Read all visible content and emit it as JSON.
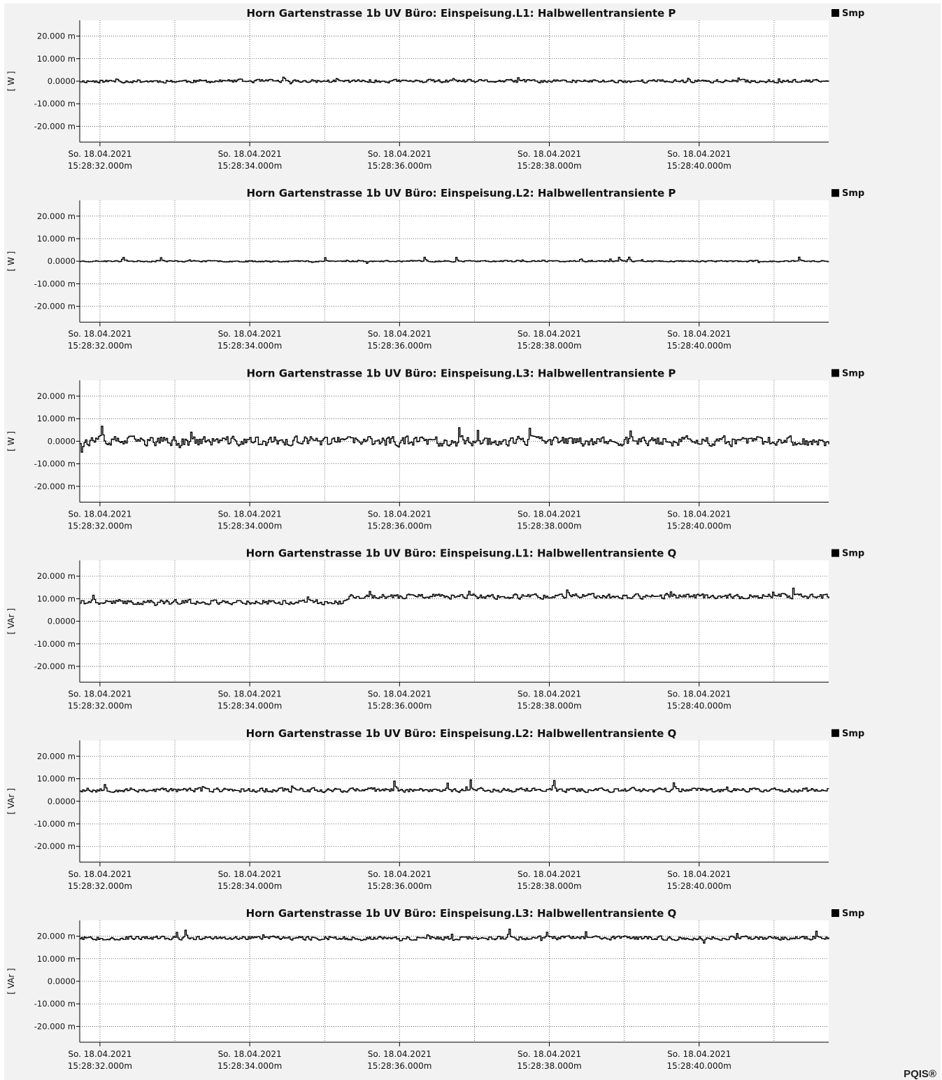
{
  "brand": "PQIS®",
  "legend_label": "Smp",
  "line_color": "#000000",
  "background_color": "#ffffff",
  "chart_data": [
    {
      "type": "line",
      "title": "Horn Gartenstrasse 1b UV Büro:   Einspeisung.L1:   Halbwellentransiente P",
      "ylabel": "[ W ]",
      "yticks": [
        "20.000 m",
        "10.000 m",
        "0.0000",
        "-10.000 m",
        "-20.000 m"
      ],
      "ytick_values": [
        0.02,
        0.01,
        0,
        -0.01,
        -0.02
      ],
      "ylim": [
        -0.027,
        0.027
      ],
      "x_ticks": [
        {
          "date": "So. 18.04.2021",
          "time": "15:28:32.000m",
          "t": 0.27
        },
        {
          "date": "So. 18.04.2021",
          "time": "15:28:34.000m",
          "t": 2.27
        },
        {
          "date": "So. 18.04.2021",
          "time": "15:28:36.000m",
          "t": 4.27
        },
        {
          "date": "So. 18.04.2021",
          "time": "15:28:38.000m",
          "t": 6.27
        },
        {
          "date": "So. 18.04.2021",
          "time": "15:28:40.000m",
          "t": 8.27
        }
      ],
      "xlim": [
        0,
        10
      ],
      "vgrid_t": [
        0.27,
        1.27,
        2.27,
        3.27,
        4.27,
        5.27,
        6.27,
        7.27,
        8.27,
        9.27
      ],
      "series": [
        {
          "mean": 0.0,
          "noise": 0.0012,
          "spikes": 0.0025,
          "seed": 11
        }
      ]
    },
    {
      "type": "line",
      "title": "Horn Gartenstrasse 1b UV Büro:   Einspeisung.L2:   Halbwellentransiente P",
      "ylabel": "[ W ]",
      "yticks": [
        "20.000 m",
        "10.000 m",
        "0.0000",
        "-10.000 m",
        "-20.000 m"
      ],
      "ytick_values": [
        0.02,
        0.01,
        0,
        -0.01,
        -0.02
      ],
      "ylim": [
        -0.027,
        0.027
      ],
      "x_ticks": [
        {
          "date": "So. 18.04.2021",
          "time": "15:28:32.000m",
          "t": 0.27
        },
        {
          "date": "So. 18.04.2021",
          "time": "15:28:34.000m",
          "t": 2.27
        },
        {
          "date": "So. 18.04.2021",
          "time": "15:28:36.000m",
          "t": 4.27
        },
        {
          "date": "So. 18.04.2021",
          "time": "15:28:38.000m",
          "t": 6.27
        },
        {
          "date": "So. 18.04.2021",
          "time": "15:28:40.000m",
          "t": 8.27
        }
      ],
      "xlim": [
        0,
        10
      ],
      "vgrid_t": [
        0.27,
        1.27,
        2.27,
        3.27,
        4.27,
        5.27,
        6.27,
        7.27,
        8.27,
        9.27
      ],
      "series": [
        {
          "mean": 0.0,
          "noise": 0.0005,
          "spikes": 0.0025,
          "seed": 23
        }
      ]
    },
    {
      "type": "line",
      "title": "Horn Gartenstrasse 1b UV Büro:   Einspeisung.L3:   Halbwellentransiente P",
      "ylabel": "[ W ]",
      "yticks": [
        "20.000 m",
        "10.000 m",
        "0.0000",
        "-10.000 m",
        "-20.000 m"
      ],
      "ytick_values": [
        0.02,
        0.01,
        0,
        -0.01,
        -0.02
      ],
      "ylim": [
        -0.027,
        0.027
      ],
      "x_ticks": [
        {
          "date": "So. 18.04.2021",
          "time": "15:28:32.000m",
          "t": 0.27
        },
        {
          "date": "So. 18.04.2021",
          "time": "15:28:34.000m",
          "t": 2.27
        },
        {
          "date": "So. 18.04.2021",
          "time": "15:28:36.000m",
          "t": 4.27
        },
        {
          "date": "So. 18.04.2021",
          "time": "15:28:38.000m",
          "t": 6.27
        },
        {
          "date": "So. 18.04.2021",
          "time": "15:28:40.000m",
          "t": 8.27
        }
      ],
      "xlim": [
        0,
        10
      ],
      "vgrid_t": [
        0.27,
        1.27,
        2.27,
        3.27,
        4.27,
        5.27,
        6.27,
        7.27,
        8.27,
        9.27
      ],
      "series": [
        {
          "mean": 0.0,
          "noise": 0.0035,
          "spikes": 0.0095,
          "seed": 37
        }
      ]
    },
    {
      "type": "line",
      "title": "Horn Gartenstrasse 1b UV Büro:   Einspeisung.L1:   Halbwellentransiente Q",
      "ylabel": "[ VAr ]",
      "yticks": [
        "20.000 m",
        "10.000 m",
        "0.0000",
        "-10.000 m",
        "-20.000 m"
      ],
      "ytick_values": [
        0.02,
        0.01,
        0,
        -0.01,
        -0.02
      ],
      "ylim": [
        -0.027,
        0.027
      ],
      "x_ticks": [
        {
          "date": "So. 18.04.2021",
          "time": "15:28:32.000m",
          "t": 0.27
        },
        {
          "date": "So. 18.04.2021",
          "time": "15:28:34.000m",
          "t": 2.27
        },
        {
          "date": "So. 18.04.2021",
          "time": "15:28:36.000m",
          "t": 4.27
        },
        {
          "date": "So. 18.04.2021",
          "time": "15:28:38.000m",
          "t": 6.27
        },
        {
          "date": "So. 18.04.2021",
          "time": "15:28:40.000m",
          "t": 8.27
        }
      ],
      "xlim": [
        0,
        10
      ],
      "vgrid_t": [
        0.27,
        1.27,
        2.27,
        3.27,
        4.27,
        5.27,
        6.27,
        7.27,
        8.27,
        9.27
      ],
      "series": [
        {
          "mean": 0.0085,
          "noise": 0.0018,
          "spikes": 0.0045,
          "seed": 41,
          "step_t": 3.55,
          "step_after": 0.011
        }
      ]
    },
    {
      "type": "line",
      "title": "Horn Gartenstrasse 1b UV Büro:   Einspeisung.L2:   Halbwellentransiente Q",
      "ylabel": "[ VAr ]",
      "yticks": [
        "20.000 m",
        "10.000 m",
        "0.0000",
        "-10.000 m",
        "-20.000 m"
      ],
      "ytick_values": [
        0.02,
        0.01,
        0,
        -0.01,
        -0.02
      ],
      "ylim": [
        -0.027,
        0.027
      ],
      "x_ticks": [
        {
          "date": "So. 18.04.2021",
          "time": "15:28:32.000m",
          "t": 0.27
        },
        {
          "date": "So. 18.04.2021",
          "time": "15:28:34.000m",
          "t": 2.27
        },
        {
          "date": "So. 18.04.2021",
          "time": "15:28:36.000m",
          "t": 4.27
        },
        {
          "date": "So. 18.04.2021",
          "time": "15:28:38.000m",
          "t": 6.27
        },
        {
          "date": "So. 18.04.2021",
          "time": "15:28:40.000m",
          "t": 8.27
        }
      ],
      "xlim": [
        0,
        10
      ],
      "vgrid_t": [
        0.27,
        1.27,
        2.27,
        3.27,
        4.27,
        5.27,
        6.27,
        7.27,
        8.27,
        9.27
      ],
      "series": [
        {
          "mean": 0.005,
          "noise": 0.0016,
          "spikes": 0.0055,
          "seed": 53
        }
      ]
    },
    {
      "type": "line",
      "title": "Horn Gartenstrasse 1b UV Büro:   Einspeisung.L3:   Halbwellentransiente Q",
      "ylabel": "[ VAr ]",
      "yticks": [
        "20.000 m",
        "10.000 m",
        "0.0000",
        "-10.000 m",
        "-20.000 m"
      ],
      "ytick_values": [
        0.02,
        0.01,
        0,
        -0.01,
        -0.02
      ],
      "ylim": [
        -0.027,
        0.027
      ],
      "x_ticks": [
        {
          "date": "So. 18.04.2021",
          "time": "15:28:32.000m",
          "t": 0.27
        },
        {
          "date": "So. 18.04.2021",
          "time": "15:28:34.000m",
          "t": 2.27
        },
        {
          "date": "So. 18.04.2021",
          "time": "15:28:36.000m",
          "t": 4.27
        },
        {
          "date": "So. 18.04.2021",
          "time": "15:28:38.000m",
          "t": 6.27
        },
        {
          "date": "So. 18.04.2021",
          "time": "15:28:40.000m",
          "t": 8.27
        }
      ],
      "xlim": [
        0,
        10
      ],
      "vgrid_t": [
        0.27,
        1.27,
        2.27,
        3.27,
        4.27,
        5.27,
        6.27,
        7.27,
        8.27,
        9.27
      ],
      "series": [
        {
          "mean": 0.0192,
          "noise": 0.0014,
          "spikes": 0.004,
          "seed": 67
        }
      ]
    }
  ]
}
